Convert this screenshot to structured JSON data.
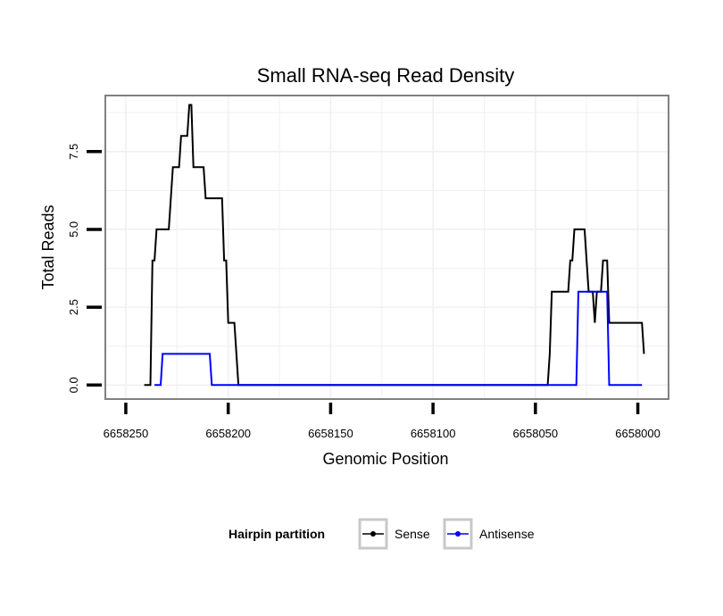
{
  "chart_data": {
    "type": "line",
    "title": "Small RNA-seq Read Density",
    "xlabel": "Genomic Position",
    "ylabel": "Total Reads",
    "x_reversed": true,
    "xlim": [
      6658260,
      6657985
    ],
    "ylim": [
      -0.45,
      9.3
    ],
    "x_ticks": [
      6658250,
      6658200,
      6658150,
      6658100,
      6658050,
      6658000
    ],
    "x_tick_labels": [
      "6658250",
      "6658200",
      "6658150",
      "6658100",
      "6658050",
      "6658000"
    ],
    "y_ticks": [
      0,
      2.5,
      5,
      7.5
    ],
    "y_tick_labels": [
      "0.0",
      "2.5",
      "5.0",
      "7.5"
    ],
    "grid": true,
    "legend": {
      "title": "Hairpin partition",
      "position": "bottom"
    },
    "series": [
      {
        "name": "Sense",
        "color": "#000000",
        "points": [
          [
            6658241,
            0
          ],
          [
            6658238,
            0
          ],
          [
            6658237,
            4
          ],
          [
            6658236,
            4
          ],
          [
            6658235,
            5
          ],
          [
            6658229,
            5
          ],
          [
            6658227,
            7
          ],
          [
            6658224,
            7
          ],
          [
            6658223,
            8
          ],
          [
            6658220,
            8
          ],
          [
            6658219,
            9
          ],
          [
            6658218,
            9
          ],
          [
            6658217,
            7
          ],
          [
            6658212,
            7
          ],
          [
            6658211,
            6
          ],
          [
            6658203,
            6
          ],
          [
            6658202,
            4
          ],
          [
            6658201,
            4
          ],
          [
            6658200,
            2
          ],
          [
            6658197,
            2
          ],
          [
            6658195,
            0
          ],
          [
            6658044,
            0
          ],
          [
            6658043,
            1
          ],
          [
            6658042,
            3
          ],
          [
            6658034,
            3
          ],
          [
            6658033,
            4
          ],
          [
            6658032,
            4
          ],
          [
            6658031,
            5
          ],
          [
            6658026,
            5
          ],
          [
            6658024,
            3
          ],
          [
            6658022,
            3
          ],
          [
            6658021,
            2
          ],
          [
            6658020,
            3
          ],
          [
            6658018,
            3
          ],
          [
            6658017,
            4
          ],
          [
            6658015,
            4
          ],
          [
            6658014,
            2
          ],
          [
            6657998,
            2
          ],
          [
            6657997,
            1
          ]
        ]
      },
      {
        "name": "Antisense",
        "color": "#0000ff",
        "points": [
          [
            6658236,
            0
          ],
          [
            6658233,
            0
          ],
          [
            6658232,
            1
          ],
          [
            6658209,
            1
          ],
          [
            6658208,
            0
          ],
          [
            6658030,
            0
          ],
          [
            6658029,
            3
          ],
          [
            6658015,
            3
          ],
          [
            6658014,
            0
          ],
          [
            6657998,
            0
          ]
        ]
      }
    ]
  }
}
